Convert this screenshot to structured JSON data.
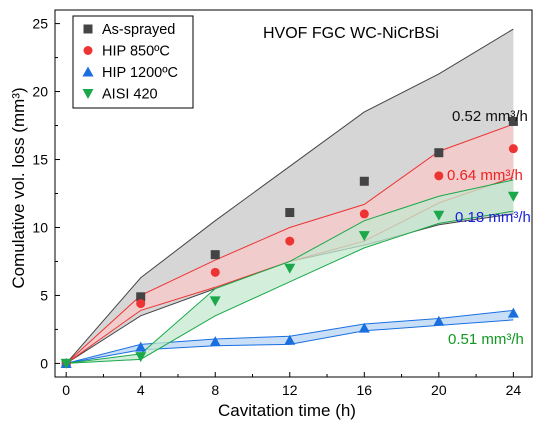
{
  "chart_data": {
    "type": "scatter",
    "title": "HVOF FGC WC-NiCrBSi",
    "xlabel": "Cavitation time (h)",
    "ylabel": "Comulative vol. loss (mm³)",
    "xlim": [
      -0.6,
      25
    ],
    "ylim": [
      -1,
      26
    ],
    "xticks": [
      0,
      4,
      8,
      12,
      16,
      20,
      24
    ],
    "yticks": [
      0,
      5,
      10,
      15,
      20,
      25
    ],
    "x": [
      0,
      4,
      8,
      12,
      16,
      20,
      24
    ],
    "grid": false,
    "legend_position": "top-left",
    "series": [
      {
        "name": "As-sprayed",
        "marker": "square",
        "color": "#444444",
        "band_color": "#c8c8c8",
        "values": [
          0,
          4.9,
          8.0,
          11.1,
          13.4,
          15.5,
          17.8
        ],
        "band_lower": [
          0,
          3.5,
          5.5,
          7.5,
          8.7,
          10.2,
          11.0
        ],
        "band_upper": [
          0,
          6.3,
          10.5,
          14.5,
          18.5,
          21.3,
          24.6
        ],
        "rate_label": "0.52 mm³/h",
        "rate_color": "#111111"
      },
      {
        "name": "HIP 850ºC",
        "marker": "circle",
        "color": "#ee3333",
        "band_color": "#f9c8c8",
        "values": [
          0,
          4.4,
          6.7,
          9.0,
          11.0,
          13.8,
          15.8
        ],
        "band_lower": [
          0,
          3.9,
          5.6,
          7.5,
          9.0,
          11.8,
          13.7
        ],
        "band_upper": [
          0,
          5.0,
          7.6,
          10.0,
          11.7,
          15.6,
          17.6
        ],
        "rate_label": "0.64 mm³/h",
        "rate_color": "#ee2222"
      },
      {
        "name": "HIP 1200ºC",
        "marker": "triangle-up",
        "color": "#1a6fe0",
        "band_color": "#b7d4f5",
        "values": [
          0,
          1.2,
          1.6,
          1.7,
          2.6,
          3.1,
          3.7
        ],
        "band_lower": [
          0,
          1.0,
          1.3,
          1.4,
          2.4,
          2.8,
          3.2
        ],
        "band_upper": [
          0,
          1.4,
          1.8,
          2.0,
          2.9,
          3.3,
          3.9
        ],
        "rate_label": "0.18 mm³/h",
        "rate_color": "#1a22dd"
      },
      {
        "name": "AISI 420",
        "marker": "triangle-down",
        "color": "#1aa84a",
        "band_color": "#c4ead0",
        "values": [
          0,
          0.5,
          4.6,
          7.0,
          9.4,
          10.9,
          12.3
        ],
        "band_lower": [
          0,
          0.3,
          3.5,
          6.0,
          8.5,
          10.3,
          11.2
        ],
        "band_upper": [
          0,
          0.7,
          5.5,
          7.5,
          10.5,
          12.3,
          13.5
        ],
        "rate_label": "0.51 mm³/h",
        "rate_color": "#119922"
      }
    ]
  }
}
